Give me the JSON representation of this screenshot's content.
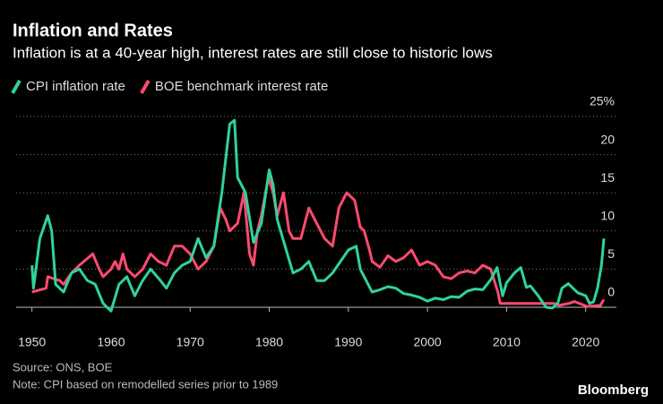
{
  "chart_data": {
    "type": "line",
    "title": "Inflation and Rates",
    "subtitle": "Inflation is at a 40-year high, interest rates are still close to historic lows",
    "source": "Source: ONS, BOE",
    "note": "Note: CPI based on remodelled series prior to 1989",
    "brand": "Bloomberg",
    "xlim": [
      1948,
      2024
    ],
    "xticks": [
      1950,
      1960,
      1970,
      1980,
      1990,
      2000,
      2010,
      2020
    ],
    "ylim": [
      -1,
      25
    ],
    "yticks": [
      0,
      5,
      10,
      15,
      20,
      {
        "value": 25,
        "label": "25%"
      }
    ],
    "grid": true,
    "series": [
      {
        "name": "CPI inflation rate",
        "color": "#2fd39a",
        "x": [
          1950,
          1950.2,
          1951,
          1952,
          1952.5,
          1953,
          1954,
          1955,
          1956,
          1957,
          1958,
          1959,
          1960,
          1961,
          1962,
          1963,
          1964,
          1965,
          1966,
          1967,
          1968,
          1969,
          1970,
          1971,
          1972,
          1973,
          1974,
          1975,
          1975.6,
          1976,
          1977,
          1978,
          1979,
          1980,
          1980.5,
          1981,
          1982,
          1983,
          1984,
          1985,
          1986,
          1987,
          1988,
          1989,
          1990,
          1991,
          1991.5,
          1992,
          1993,
          1994,
          1995,
          1996,
          1997,
          1998,
          1999,
          2000,
          2001,
          2002,
          2003,
          2004,
          2005,
          2006,
          2007,
          2008,
          2008.8,
          2009.5,
          2010,
          2011,
          2011.8,
          2012.5,
          2013,
          2014,
          2015,
          2015.8,
          2016.5,
          2017,
          2017.8,
          2018.5,
          2019,
          2020,
          2020.5,
          2021,
          2021.5,
          2022,
          2022.3
        ],
        "values": [
          5.5,
          2.5,
          9,
          12,
          10,
          3,
          2,
          4.5,
          5,
          3.5,
          3,
          0.5,
          -0.5,
          3,
          4,
          1.5,
          3.5,
          5,
          3.8,
          2.5,
          4.5,
          5.5,
          6,
          9,
          6.5,
          8,
          15,
          24,
          24.5,
          17,
          15,
          8.5,
          11,
          18,
          16,
          11.5,
          8,
          4.5,
          5,
          6,
          3.5,
          3.5,
          4.5,
          6,
          7.5,
          8,
          5,
          4,
          2,
          2.3,
          2.7,
          2.5,
          1.8,
          1.6,
          1.3,
          0.8,
          1.2,
          1,
          1.4,
          1.3,
          2.1,
          2.4,
          2.3,
          3.6,
          5.2,
          1.5,
          3.2,
          4.5,
          5.2,
          2.6,
          2.8,
          1.5,
          0,
          -0.1,
          0.6,
          2.5,
          3.1,
          2.4,
          1.9,
          1.5,
          0.5,
          0.7,
          2.5,
          5.5,
          9
        ]
      },
      {
        "name": "BOE benchmark interest rate",
        "color": "#ff4a6e",
        "x": [
          1950,
          1951.8,
          1952,
          1953.5,
          1954,
          1955,
          1956,
          1957.7,
          1958.5,
          1959,
          1960,
          1960.5,
          1961,
          1961.5,
          1962,
          1963,
          1964,
          1965,
          1966,
          1967,
          1968,
          1969,
          1970,
          1971,
          1972,
          1973,
          1973.8,
          1974.5,
          1975,
          1976,
          1976.8,
          1977.5,
          1978,
          1978.5,
          1979,
          1979.9,
          1980.5,
          1981,
          1981.8,
          1982.5,
          1983,
          1984,
          1985,
          1986,
          1987,
          1988,
          1988.8,
          1989.8,
          1990.8,
          1991.5,
          1992,
          1992.8,
          1993,
          1994,
          1995,
          1996,
          1997,
          1998,
          1999,
          2000,
          2001,
          2002,
          2003,
          2004,
          2005,
          2006,
          2007,
          2008,
          2008.9,
          2009.2,
          2016,
          2016.6,
          2017.9,
          2018.6,
          2020.2,
          2021.9,
          2022,
          2022.3
        ],
        "values": [
          2,
          2.5,
          4,
          3.5,
          3,
          4.5,
          5.5,
          7,
          5,
          4,
          5,
          6,
          5,
          7,
          5,
          4,
          5,
          7,
          6,
          5.5,
          8,
          8,
          7,
          5,
          6,
          8,
          13,
          11.5,
          10,
          11,
          15,
          7,
          5.5,
          10,
          12,
          17,
          15,
          12,
          15,
          10,
          9,
          9,
          13,
          11,
          9,
          8,
          13,
          15,
          14,
          10.5,
          10,
          7,
          6,
          5.25,
          6.75,
          6,
          6.5,
          7.5,
          5.5,
          6,
          5.5,
          4,
          3.75,
          4.5,
          4.75,
          4.5,
          5.5,
          5,
          2,
          0.5,
          0.5,
          0.25,
          0.5,
          0.75,
          0.1,
          0.25,
          0.5,
          1
        ]
      }
    ]
  }
}
